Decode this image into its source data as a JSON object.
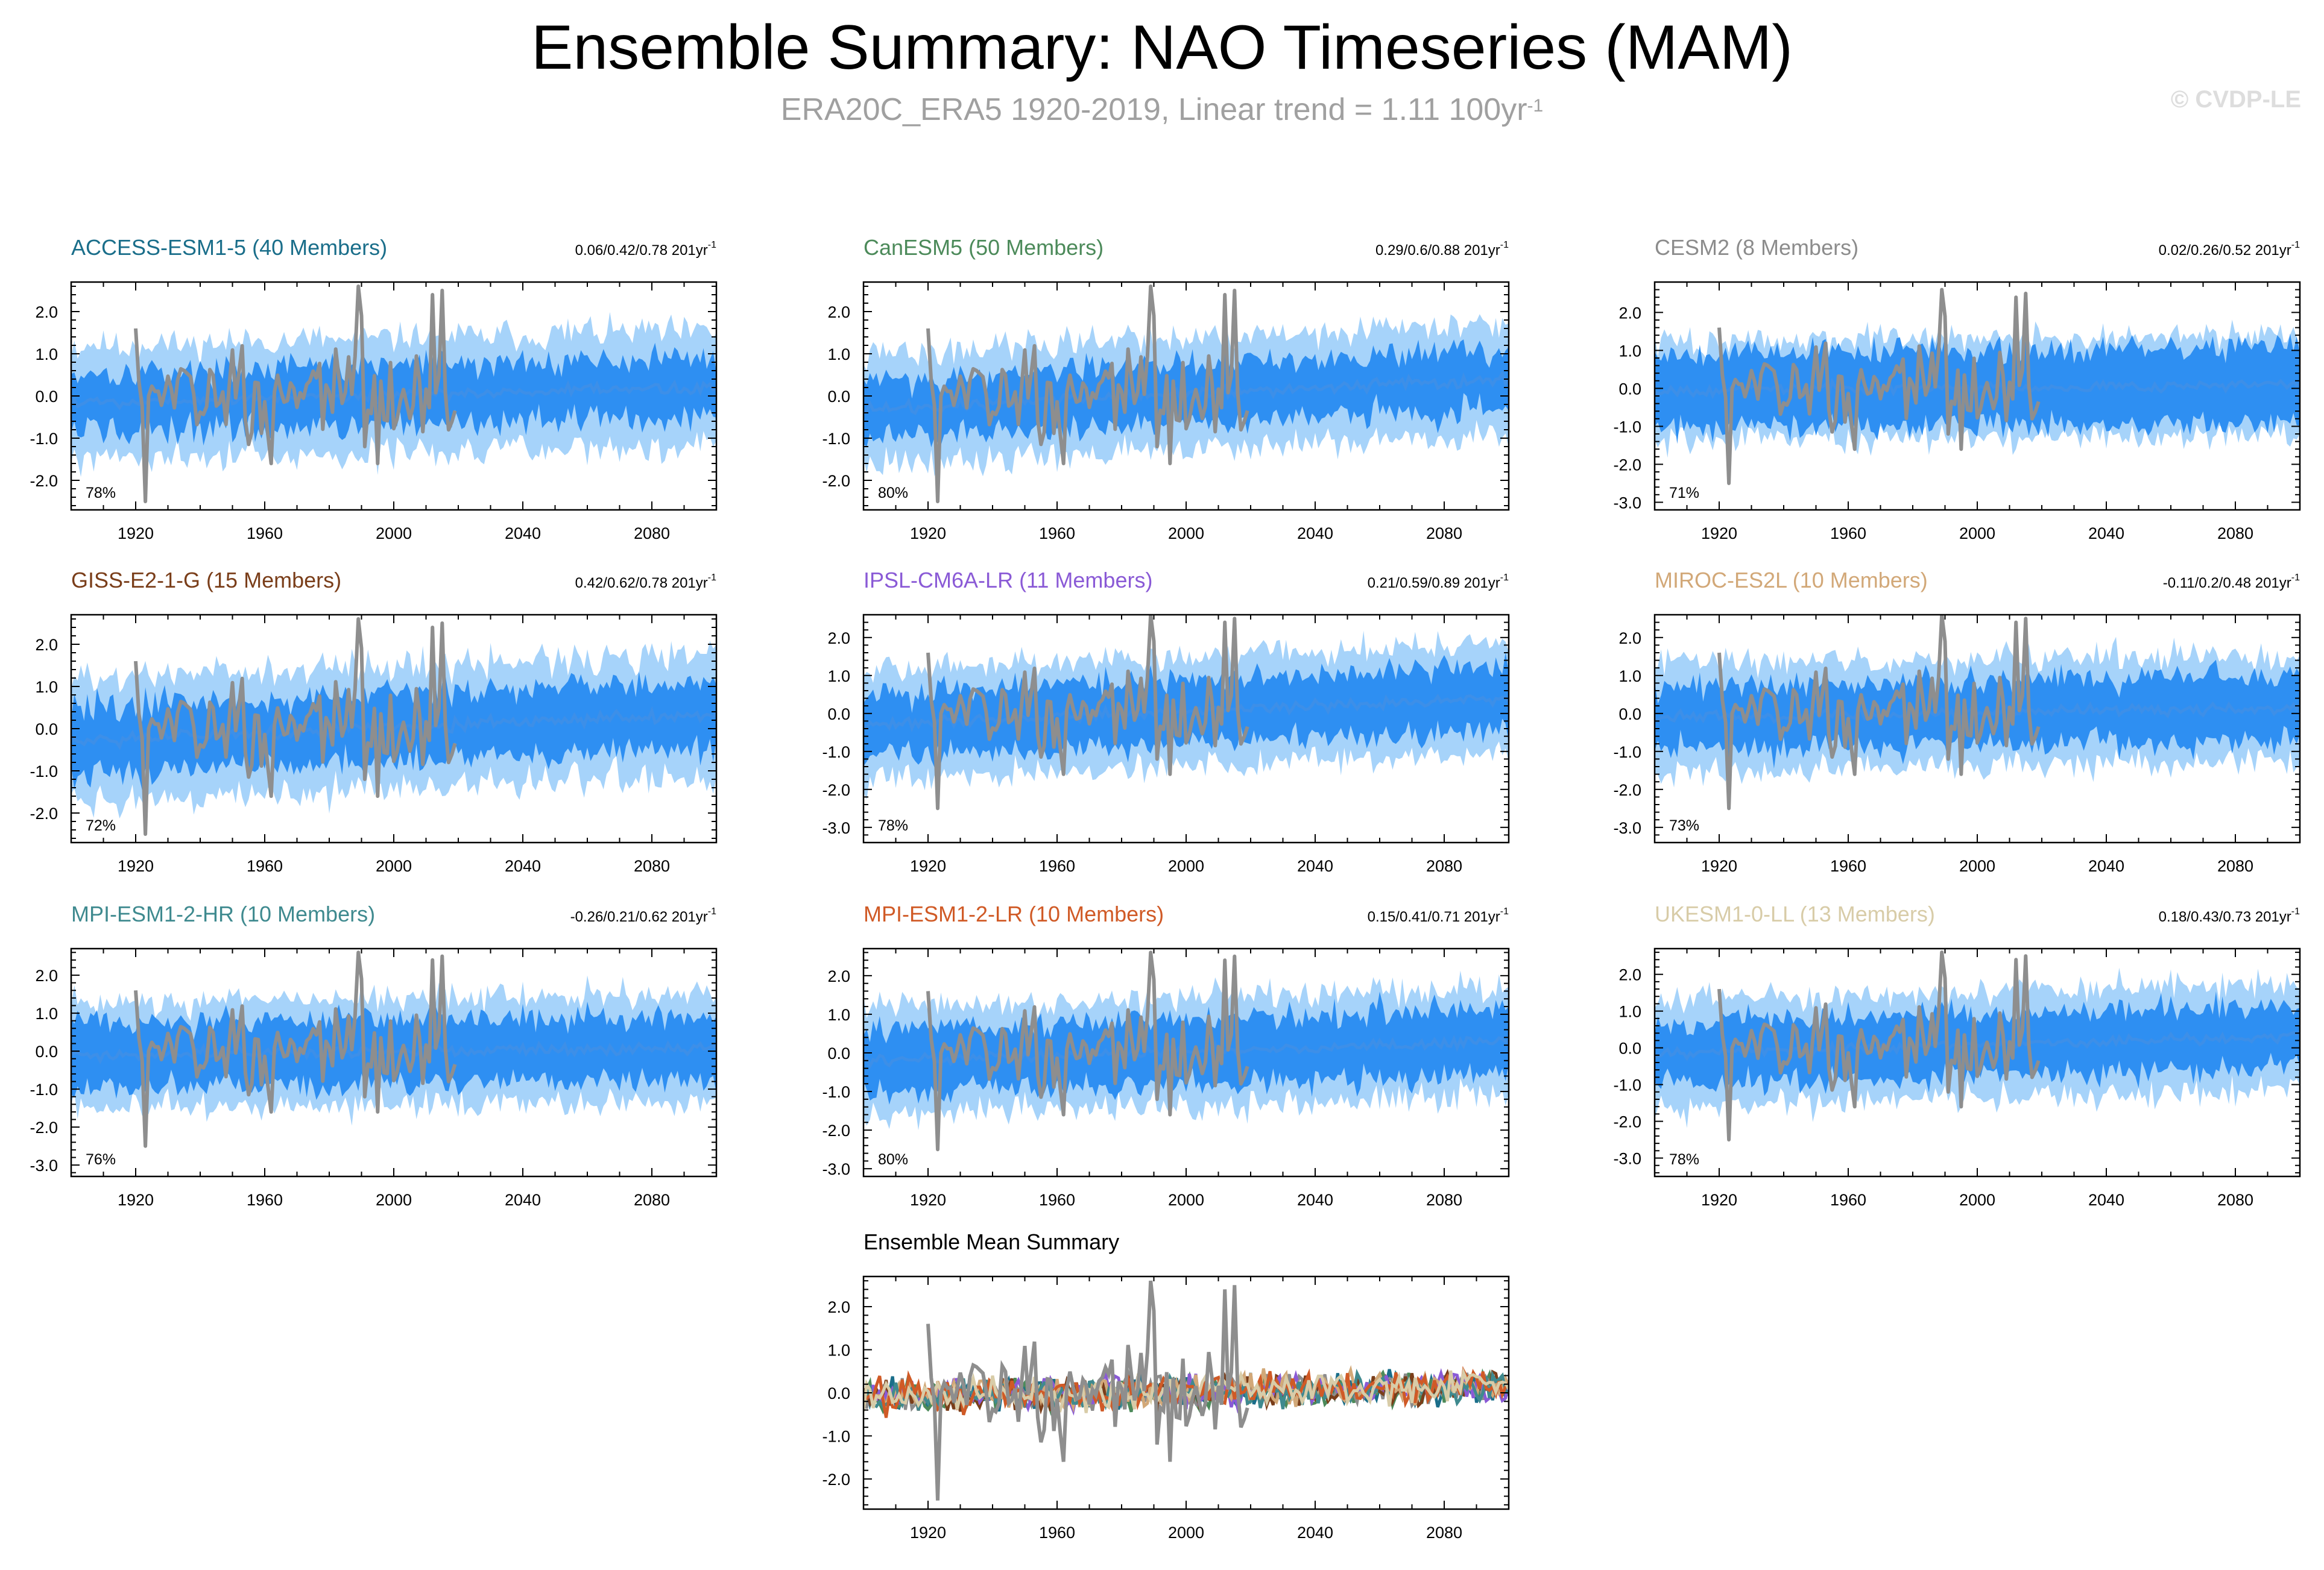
{
  "figure": {
    "title": "Ensemble Summary: NAO Timeseries (MAM)",
    "subtitle": "ERA20C_ERA5 1920-2019, Linear trend = 1.11 100yr",
    "subtitle_sup": "-1",
    "watermark": "© CVDP-LE"
  },
  "colors": {
    "outer_band": "#a6d3fa",
    "inner_band": "#2e8ff2",
    "ens_mean": "#3d8fe8",
    "observations": "#8e8e8e"
  },
  "chart_data": [
    {
      "type": "area",
      "name": "ACCESS-ESM1-5",
      "title": "ACCESS-ESM1-5 (40 Members)",
      "title_color": "#1a6e8a",
      "trend_text": "0.06/0.42/0.78 201yr",
      "trend_sup": "-1",
      "percent": "78%",
      "xlim": [
        1900,
        2100
      ],
      "ylim": [
        -2.7,
        2.7
      ],
      "yticks": [
        -2.0,
        -1.0,
        0.0,
        1.0,
        2.0
      ],
      "ytick_labels": [
        "-2.0",
        "-1.0",
        "0.0",
        "1.0",
        "2.0"
      ],
      "xticks": [
        1920,
        1960,
        2000,
        2040,
        2080
      ],
      "xtick_labels": [
        "1920",
        "1960",
        "2000",
        "2040",
        "2080"
      ],
      "mean_trend": [
        -0.15,
        0.2
      ],
      "outer_halfwidth": 1.35,
      "inner_halfwidth": 0.7,
      "series": [
        {
          "name": "Ensemble mean",
          "role": "mean"
        },
        {
          "name": "ERA20C_ERA5",
          "role": "obs",
          "years": [
            1920,
            2019
          ]
        }
      ]
    },
    {
      "type": "area",
      "name": "CanESM5",
      "title": "CanESM5 (50 Members)",
      "title_color": "#4c8a5a",
      "trend_text": "0.29/0.6/0.88 201yr",
      "trend_sup": "-1",
      "percent": "80%",
      "xlim": [
        1900,
        2100
      ],
      "ylim": [
        -2.7,
        2.7
      ],
      "yticks": [
        -2.0,
        -1.0,
        0.0,
        1.0,
        2.0
      ],
      "ytick_labels": [
        "-2.0",
        "-1.0",
        "0.0",
        "1.0",
        "2.0"
      ],
      "xticks": [
        1920,
        1960,
        2000,
        2040,
        2080
      ],
      "xtick_labels": [
        "1920",
        "1960",
        "2000",
        "2040",
        "2080"
      ],
      "mean_trend": [
        -0.3,
        0.4
      ],
      "outer_halfwidth": 1.3,
      "inner_halfwidth": 0.7,
      "series": [
        {
          "name": "Ensemble mean",
          "role": "mean"
        },
        {
          "name": "ERA20C_ERA5",
          "role": "obs",
          "years": [
            1920,
            2019
          ]
        }
      ]
    },
    {
      "type": "area",
      "name": "CESM2",
      "title": "CESM2 (8 Members)",
      "title_color": "#8c8c8c",
      "trend_text": "0.02/0.26/0.52 201yr",
      "trend_sup": "-1",
      "percent": "71%",
      "xlim": [
        1900,
        2100
      ],
      "ylim": [
        -3.2,
        2.8
      ],
      "yticks": [
        -3.0,
        -2.0,
        -1.0,
        0.0,
        1.0,
        2.0
      ],
      "ytick_labels": [
        "-3.0",
        "-2.0",
        "-1.0",
        "0.0",
        "1.0",
        "2.0"
      ],
      "xticks": [
        1920,
        1960,
        2000,
        2040,
        2080
      ],
      "xtick_labels": [
        "1920",
        "1960",
        "2000",
        "2040",
        "2080"
      ],
      "mean_trend": [
        -0.05,
        0.1
      ],
      "outer_halfwidth": 1.3,
      "inner_halfwidth": 1.0,
      "series": [
        {
          "name": "Ensemble mean",
          "role": "mean"
        },
        {
          "name": "ERA20C_ERA5",
          "role": "obs",
          "years": [
            1920,
            2019
          ]
        }
      ]
    },
    {
      "type": "area",
      "name": "GISS-E2-1-G",
      "title": "GISS-E2-1-G (15 Members)",
      "title_color": "#7a3e1a",
      "trend_text": "0.42/0.62/0.78 201yr",
      "trend_sup": "-1",
      "percent": "72%",
      "xlim": [
        1900,
        2100
      ],
      "ylim": [
        -2.7,
        2.7
      ],
      "yticks": [
        -2.0,
        -1.0,
        0.0,
        1.0,
        2.0
      ],
      "ytick_labels": [
        "-2.0",
        "-1.0",
        "0.0",
        "1.0",
        "2.0"
      ],
      "xticks": [
        1920,
        1960,
        2000,
        2040,
        2080
      ],
      "xtick_labels": [
        "1920",
        "1960",
        "2000",
        "2040",
        "2080"
      ],
      "mean_trend": [
        -0.3,
        0.35
      ],
      "outer_halfwidth": 1.45,
      "inner_halfwidth": 0.8,
      "series": [
        {
          "name": "Ensemble mean",
          "role": "mean"
        },
        {
          "name": "ERA20C_ERA5",
          "role": "obs",
          "years": [
            1920,
            2019
          ]
        }
      ]
    },
    {
      "type": "area",
      "name": "IPSL-CM6A-LR",
      "title": "IPSL-CM6A-LR (11 Members)",
      "title_color": "#8a5ad6",
      "trend_text": "0.21/0.59/0.89 201yr",
      "trend_sup": "-1",
      "percent": "78%",
      "xlim": [
        1900,
        2100
      ],
      "ylim": [
        -3.4,
        2.6
      ],
      "yticks": [
        -3.0,
        -2.0,
        -1.0,
        0.0,
        1.0,
        2.0
      ],
      "ytick_labels": [
        "-3.0",
        "-2.0",
        "-1.0",
        "0.0",
        "1.0",
        "2.0"
      ],
      "xticks": [
        1920,
        1960,
        2000,
        2040,
        2080
      ],
      "xtick_labels": [
        "1920",
        "1960",
        "2000",
        "2040",
        "2080"
      ],
      "mean_trend": [
        -0.3,
        0.4
      ],
      "outer_halfwidth": 1.45,
      "inner_halfwidth": 0.85,
      "series": [
        {
          "name": "Ensemble mean",
          "role": "mean"
        },
        {
          "name": "ERA20C_ERA5",
          "role": "obs",
          "years": [
            1920,
            2019
          ]
        }
      ]
    },
    {
      "type": "area",
      "name": "MIROC-ES2L",
      "title": "MIROC-ES2L (10 Members)",
      "title_color": "#d2a878",
      "trend_text": "-0.11/0.2/0.48 201yr",
      "trend_sup": "-1",
      "percent": "73%",
      "xlim": [
        1900,
        2100
      ],
      "ylim": [
        -3.4,
        2.6
      ],
      "yticks": [
        -3.0,
        -2.0,
        -1.0,
        0.0,
        1.0,
        2.0
      ],
      "ytick_labels": [
        "-3.0",
        "-2.0",
        "-1.0",
        "0.0",
        "1.0",
        "2.0"
      ],
      "xticks": [
        1920,
        1960,
        2000,
        2040,
        2080
      ],
      "xtick_labels": [
        "1920",
        "1960",
        "2000",
        "2040",
        "2080"
      ],
      "mean_trend": [
        -0.1,
        0.15
      ],
      "outer_halfwidth": 1.4,
      "inner_halfwidth": 0.85,
      "series": [
        {
          "name": "Ensemble mean",
          "role": "mean"
        },
        {
          "name": "ERA20C_ERA5",
          "role": "obs",
          "years": [
            1920,
            2019
          ]
        }
      ]
    },
    {
      "type": "area",
      "name": "MPI-ESM1-2-HR",
      "title": "MPI-ESM1-2-HR (10 Members)",
      "title_color": "#3f8a8f",
      "trend_text": "-0.26/0.21/0.62 201yr",
      "trend_sup": "-1",
      "percent": "76%",
      "xlim": [
        1900,
        2100
      ],
      "ylim": [
        -3.3,
        2.7
      ],
      "yticks": [
        -3.0,
        -2.0,
        -1.0,
        0.0,
        1.0,
        2.0
      ],
      "ytick_labels": [
        "-3.0",
        "-2.0",
        "-1.0",
        "0.0",
        "1.0",
        "2.0"
      ],
      "xticks": [
        1920,
        1960,
        2000,
        2040,
        2080
      ],
      "xtick_labels": [
        "1920",
        "1960",
        "2000",
        "2040",
        "2080"
      ],
      "mean_trend": [
        -0.1,
        0.1
      ],
      "outer_halfwidth": 1.4,
      "inner_halfwidth": 0.85,
      "series": [
        {
          "name": "Ensemble mean",
          "role": "mean"
        },
        {
          "name": "ERA20C_ERA5",
          "role": "obs",
          "years": [
            1920,
            2019
          ]
        }
      ]
    },
    {
      "type": "area",
      "name": "MPI-ESM1-2-LR",
      "title": "MPI-ESM1-2-LR (10 Members)",
      "title_color": "#d05a26",
      "trend_text": "0.15/0.41/0.71 201yr",
      "trend_sup": "-1",
      "percent": "80%",
      "xlim": [
        1900,
        2100
      ],
      "ylim": [
        -3.2,
        2.7
      ],
      "yticks": [
        -3.0,
        -2.0,
        -1.0,
        0.0,
        1.0,
        2.0
      ],
      "ytick_labels": [
        "-3.0",
        "-2.0",
        "-1.0",
        "0.0",
        "1.0",
        "2.0"
      ],
      "xticks": [
        1920,
        1960,
        2000,
        2040,
        2080
      ],
      "xtick_labels": [
        "1920",
        "1960",
        "2000",
        "2040",
        "2080"
      ],
      "mean_trend": [
        -0.2,
        0.3
      ],
      "outer_halfwidth": 1.4,
      "inner_halfwidth": 0.85,
      "series": [
        {
          "name": "Ensemble mean",
          "role": "mean"
        },
        {
          "name": "ERA20C_ERA5",
          "role": "obs",
          "years": [
            1920,
            2019
          ]
        }
      ]
    },
    {
      "type": "area",
      "name": "UKESM1-0-LL",
      "title": "UKESM1-0-LL (13 Members)",
      "title_color": "#d8cca8",
      "trend_text": "0.18/0.43/0.73 201yr",
      "trend_sup": "-1",
      "percent": "78%",
      "xlim": [
        1900,
        2100
      ],
      "ylim": [
        -3.5,
        2.7
      ],
      "yticks": [
        -3.0,
        -2.0,
        -1.0,
        0.0,
        1.0,
        2.0
      ],
      "ytick_labels": [
        "-3.0",
        "-2.0",
        "-1.0",
        "0.0",
        "1.0",
        "2.0"
      ],
      "xticks": [
        1920,
        1960,
        2000,
        2040,
        2080
      ],
      "xtick_labels": [
        "1920",
        "1960",
        "2000",
        "2040",
        "2080"
      ],
      "mean_trend": [
        -0.15,
        0.3
      ],
      "outer_halfwidth": 1.45,
      "inner_halfwidth": 0.85,
      "series": [
        {
          "name": "Ensemble mean",
          "role": "mean"
        },
        {
          "name": "ERA20C_ERA5",
          "role": "obs",
          "years": [
            1920,
            2019
          ]
        }
      ]
    },
    {
      "type": "line",
      "name": "Ensemble Mean Summary",
      "title": "Ensemble Mean Summary",
      "title_color": "#000000",
      "xlim": [
        1900,
        2100
      ],
      "ylim": [
        -2.7,
        2.7
      ],
      "yticks": [
        -2.0,
        -1.0,
        0.0,
        1.0,
        2.0
      ],
      "ytick_labels": [
        "-2.0",
        "-1.0",
        "0.0",
        "1.0",
        "2.0"
      ],
      "xticks": [
        1920,
        1960,
        2000,
        2040,
        2080
      ],
      "xtick_labels": [
        "1920",
        "1960",
        "2000",
        "2040",
        "2080"
      ],
      "series": [
        {
          "name": "ACCESS-ESM1-5",
          "color": "#1a6e8a"
        },
        {
          "name": "CanESM5",
          "color": "#4c8a5a"
        },
        {
          "name": "CESM2",
          "color": "#8c8c8c"
        },
        {
          "name": "GISS-E2-1-G",
          "color": "#7a3e1a"
        },
        {
          "name": "IPSL-CM6A-LR",
          "color": "#8a5ad6"
        },
        {
          "name": "MIROC-ES2L",
          "color": "#d2a878"
        },
        {
          "name": "MPI-ESM1-2-HR",
          "color": "#3f8a8f"
        },
        {
          "name": "MPI-ESM1-2-LR",
          "color": "#d05a26"
        },
        {
          "name": "UKESM1-0-LL",
          "color": "#d8cca8"
        },
        {
          "name": "ERA20C_ERA5",
          "color": "#8e8e8e",
          "years": [
            1920,
            2019
          ]
        }
      ]
    }
  ]
}
